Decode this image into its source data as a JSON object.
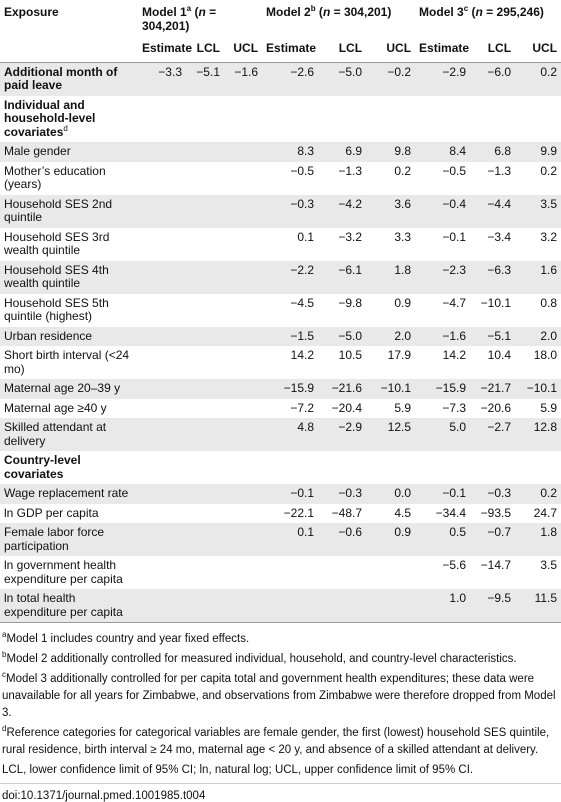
{
  "table": {
    "header": {
      "exposure": "Exposure",
      "models": [
        {
          "label": "Model 1",
          "sup": "a",
          "open": " (",
          "n": "n",
          "count": " = 304,201)"
        },
        {
          "label": "Model 2",
          "sup": "b",
          "open": " (",
          "n": "n",
          "count": " = 304,201)"
        },
        {
          "label": "Model 3",
          "sup": "c",
          "open": " (",
          "n": "n",
          "count": " = 295,246)"
        }
      ],
      "sub": [
        "Estimate",
        "LCL",
        "UCL",
        "Estimate",
        "LCL",
        "UCL",
        "Estimate",
        "LCL",
        "UCL"
      ]
    },
    "rows": [
      {
        "label": "Additional month of paid leave",
        "bold": true,
        "cells": [
          "−3.3",
          "−5.1",
          "−1.6",
          "−2.6",
          "−5.0",
          "−0.2",
          "−2.9",
          "−6.0",
          "0.2"
        ]
      },
      {
        "label": "Individual and household-level covariates",
        "sup": "d",
        "bold": true,
        "cells": [
          null,
          null,
          null,
          null,
          null,
          null,
          null,
          null,
          null
        ]
      },
      {
        "label": "Male gender",
        "cells": [
          null,
          null,
          null,
          "8.3",
          "6.9",
          "9.8",
          "8.4",
          "6.8",
          "9.9"
        ]
      },
      {
        "label": "Mother’s education (years)",
        "cells": [
          null,
          null,
          null,
          "−0.5",
          "−1.3",
          "0.2",
          "−0.5",
          "−1.3",
          "0.2"
        ]
      },
      {
        "label": "Household SES 2nd quintile",
        "cells": [
          null,
          null,
          null,
          "−0.3",
          "−4.2",
          "3.6",
          "−0.4",
          "−4.4",
          "3.5"
        ]
      },
      {
        "label": "Household SES 3rd wealth quintile",
        "cells": [
          null,
          null,
          null,
          "0.1",
          "−3.2",
          "3.3",
          "−0.1",
          "−3.4",
          "3.2"
        ]
      },
      {
        "label": "Household SES 4th wealth quintile",
        "cells": [
          null,
          null,
          null,
          "−2.2",
          "−6.1",
          "1.8",
          "−2.3",
          "−6.3",
          "1.6"
        ]
      },
      {
        "label": "Household SES 5th quintile (highest)",
        "cells": [
          null,
          null,
          null,
          "−4.5",
          "−9.8",
          "0.9",
          "−4.7",
          "−10.1",
          "0.8"
        ]
      },
      {
        "label": "Urban residence",
        "cells": [
          null,
          null,
          null,
          "−1.5",
          "−5.0",
          "2.0",
          "−1.6",
          "−5.1",
          "2.0"
        ]
      },
      {
        "label": "Short birth interval (<24 mo)",
        "cells": [
          null,
          null,
          null,
          "14.2",
          "10.5",
          "17.9",
          "14.2",
          "10.4",
          "18.0"
        ]
      },
      {
        "label": "Maternal age 20–39 y",
        "cells": [
          null,
          null,
          null,
          "−15.9",
          "−21.6",
          "−10.1",
          "−15.9",
          "−21.7",
          "−10.1"
        ]
      },
      {
        "label": "Maternal age ≥40 y",
        "cells": [
          null,
          null,
          null,
          "−7.2",
          "−20.4",
          "5.9",
          "−7.3",
          "−20.6",
          "5.9"
        ]
      },
      {
        "label": "Skilled attendant at delivery",
        "cells": [
          null,
          null,
          null,
          "4.8",
          "−2.9",
          "12.5",
          "5.0",
          "−2.7",
          "12.8"
        ]
      },
      {
        "label": "Country-level covariates",
        "bold": true,
        "cells": [
          null,
          null,
          null,
          null,
          null,
          null,
          null,
          null,
          null
        ]
      },
      {
        "label": "Wage replacement rate",
        "cells": [
          null,
          null,
          null,
          "−0.1",
          "−0.3",
          "0.0",
          "−0.1",
          "−0.3",
          "0.2"
        ]
      },
      {
        "label": "ln GDP per capita",
        "cells": [
          null,
          null,
          null,
          "−22.1",
          "−48.7",
          "4.5",
          "−34.4",
          "−93.5",
          "24.7"
        ]
      },
      {
        "label": "Female labor force participation",
        "cells": [
          null,
          null,
          null,
          "0.1",
          "−0.6",
          "0.9",
          "0.5",
          "−0.7",
          "1.8"
        ]
      },
      {
        "label": "ln government health expenditure per capita",
        "cells": [
          null,
          null,
          null,
          null,
          null,
          null,
          "−5.6",
          "−14.7",
          "3.5"
        ]
      },
      {
        "label": "ln total health expenditure per capita",
        "cells": [
          null,
          null,
          null,
          null,
          null,
          null,
          "1.0",
          "−9.5",
          "11.5"
        ]
      }
    ]
  },
  "footnotes": [
    {
      "sup": "a",
      "text": "Model 1 includes country and year fixed effects."
    },
    {
      "sup": "b",
      "text": "Model 2 additionally controlled for measured individual, household, and country-level characteristics."
    },
    {
      "sup": "c",
      "text": "Model 3 additionally controlled for per capita total and government health expenditures; these data were unavailable for all years for Zimbabwe, and observations from Zimbabwe were therefore dropped from Model 3."
    },
    {
      "sup": "d",
      "text": "Reference categories for categorical variables are female gender, the first (lowest) household SES quintile, rural residence, birth interval ≥ 24 mo, maternal age < 20 y, and absence of a skilled attendant at delivery."
    },
    {
      "text": "LCL, lower confidence limit of 95% CI; ln, natural log; UCL, upper confidence limit of 95% CI."
    }
  ],
  "doi": "doi:10.1371/journal.pmed.1001985.t004"
}
